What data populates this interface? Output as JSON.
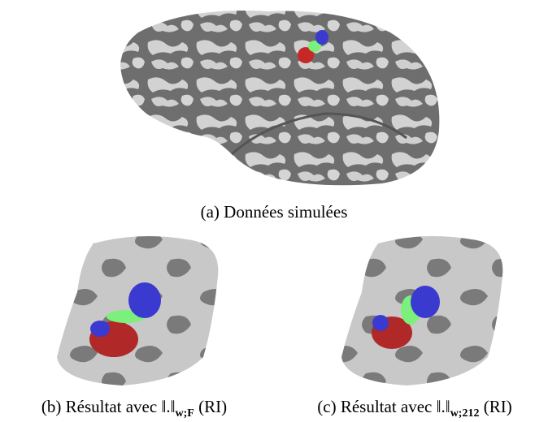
{
  "figure": {
    "panels": [
      {
        "label": "(a)",
        "text": "Données simulées"
      },
      {
        "label": "(b)",
        "text": "Résultat avec ‖.‖",
        "subscript": "w;F",
        "suffix": "(RI)"
      },
      {
        "label": "(c)",
        "text": "Résultat avec ‖.‖",
        "subscript": "w;212",
        "suffix": "(RI)"
      }
    ]
  }
}
